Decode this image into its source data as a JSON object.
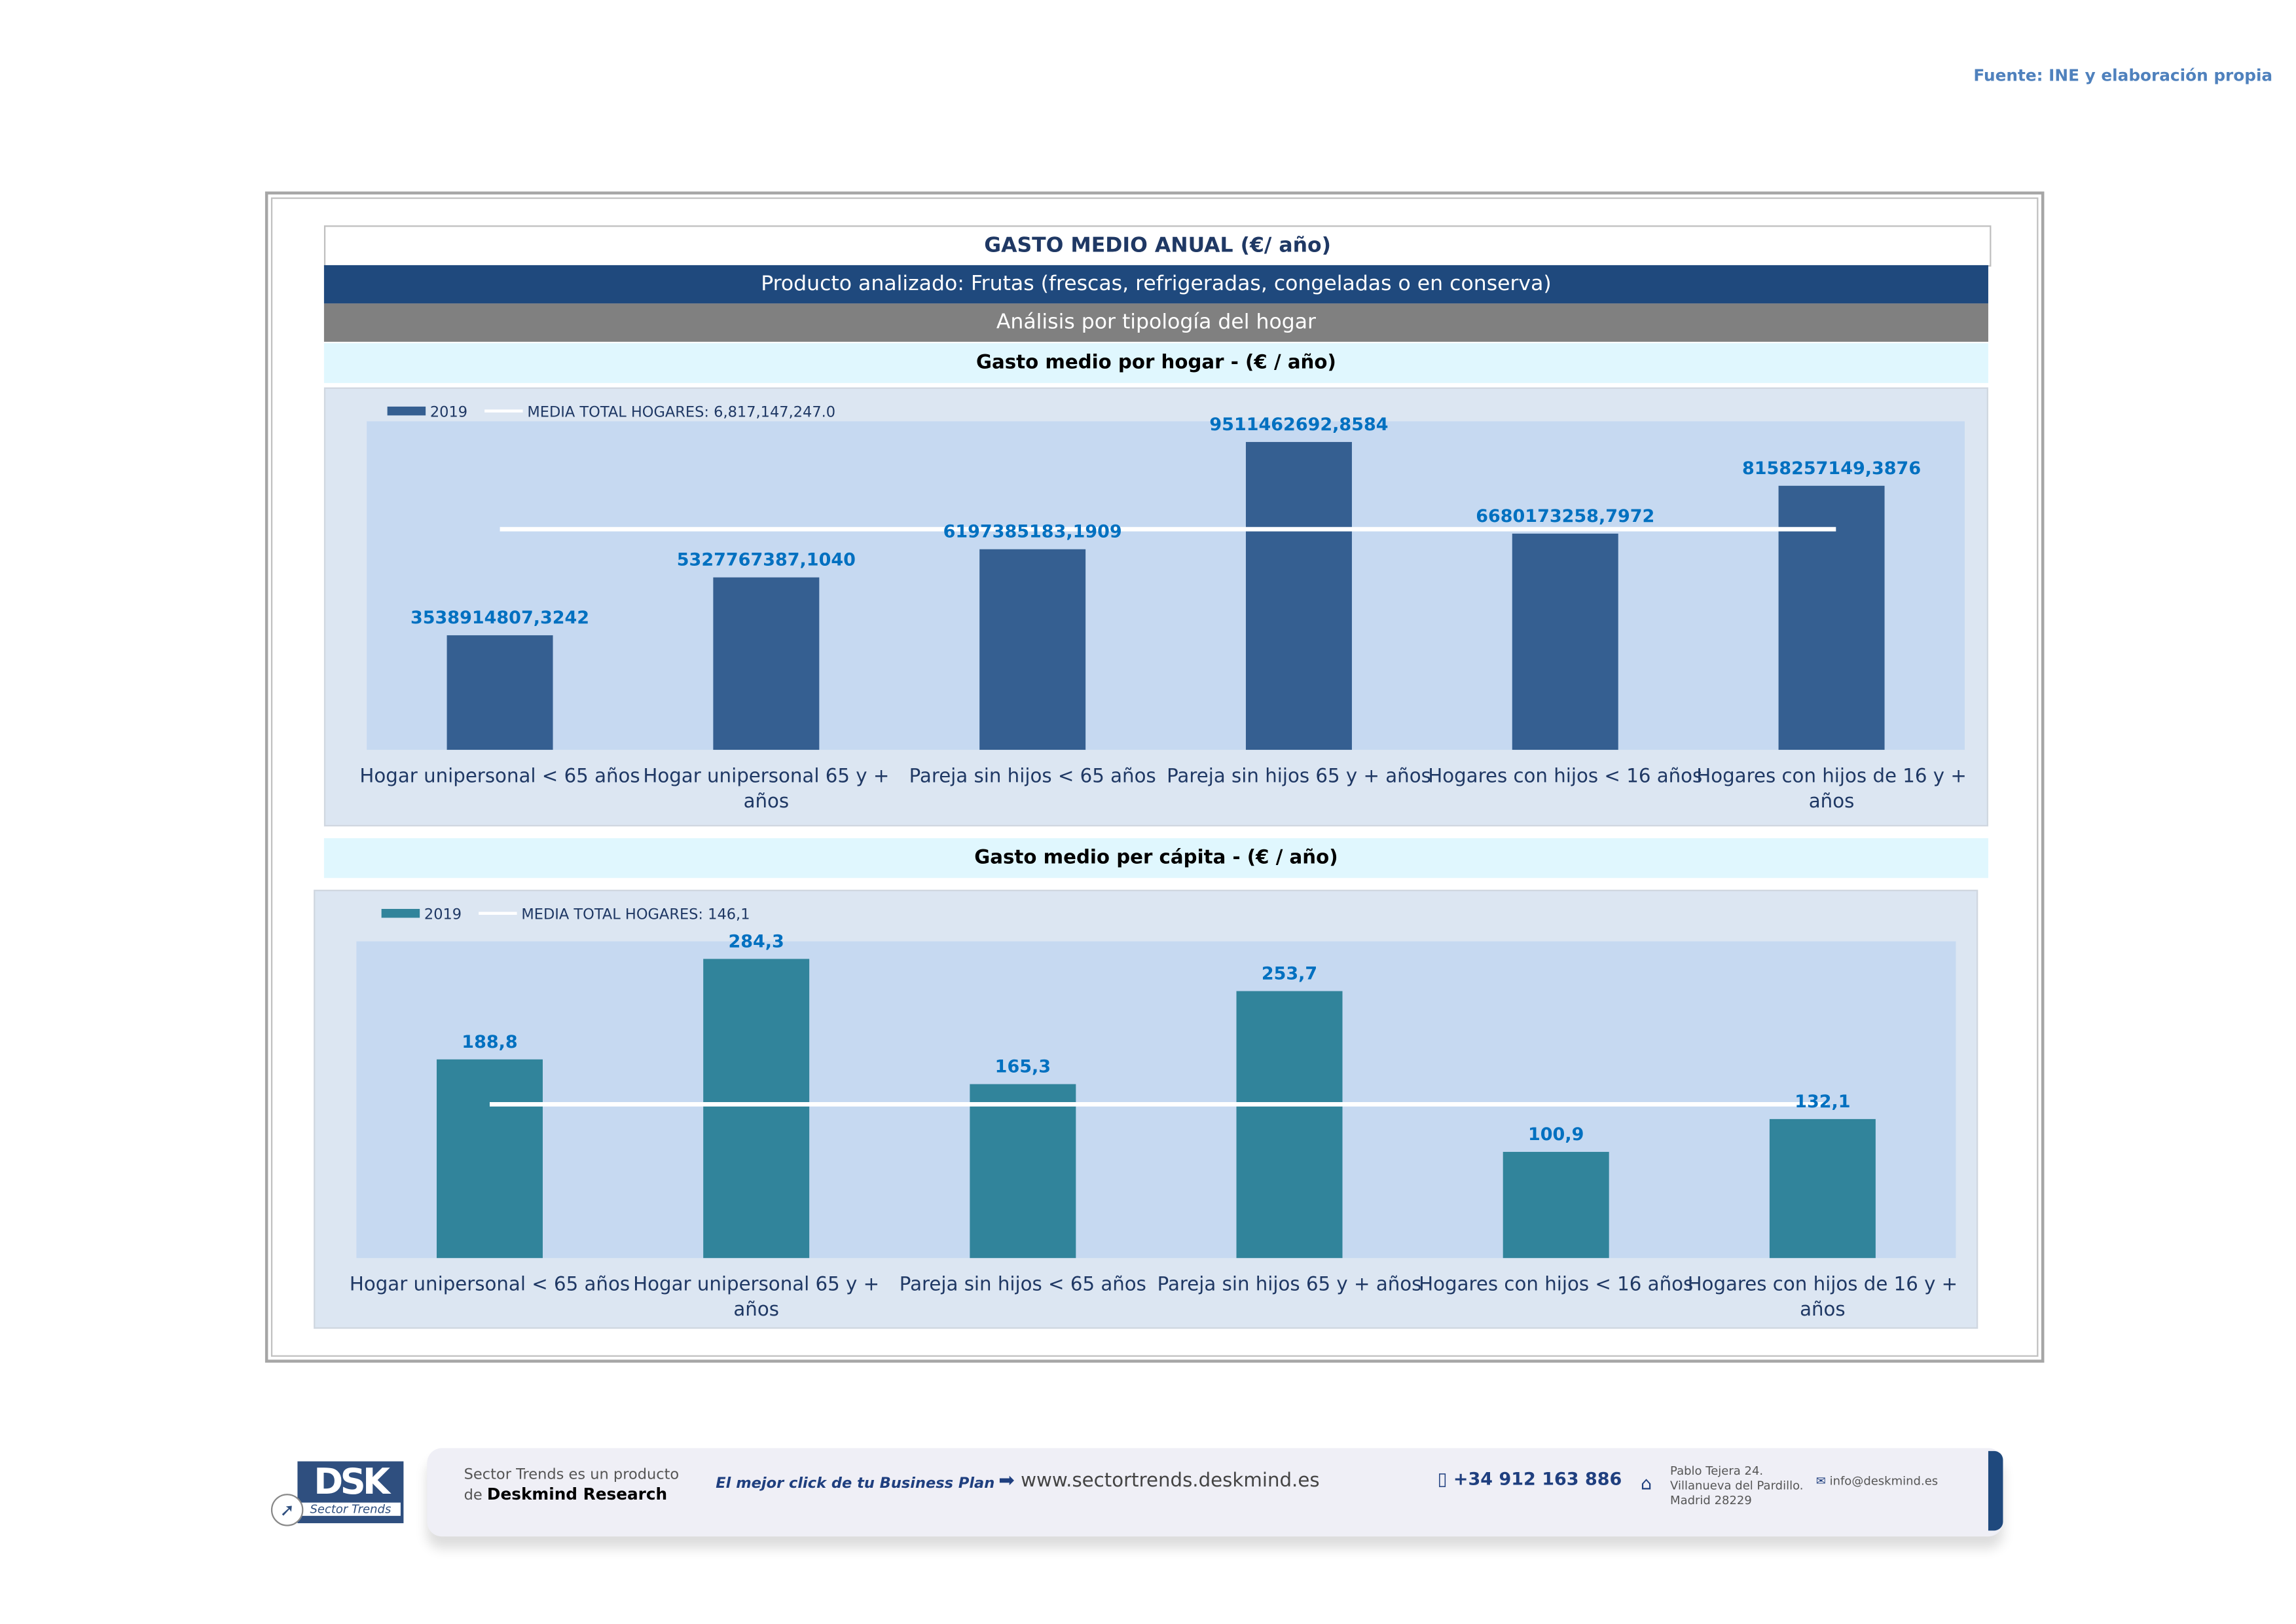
{
  "source": "Fuente: INE y elaboración propia",
  "header": {
    "title": "GASTO MEDIO ANUAL (€/ año)",
    "product": "Producto analizado: Frutas (frescas, refrigeradas, congeladas o en conserva)",
    "analysis": "Análisis por tipología del hogar"
  },
  "chart_data": [
    {
      "type": "bar",
      "title": "Gasto medio por hogar -  (€ / año)",
      "categories": [
        "Hogar unipersonal < 65 años",
        "Hogar unipersonal  65 y + años",
        "Pareja sin hijos < 65 años",
        "Pareja sin hijos 65 y + años",
        "Hogares con hijos < 16 años",
        "Hogares con hijos de 16 y + años"
      ],
      "series": [
        {
          "name": "2019",
          "color": "#355f91",
          "values": [
            3538914807.3242,
            5327767387.104,
            6197385183.1909,
            9511462692.8584,
            6680173258.7972,
            8158257149.3876
          ],
          "labels": [
            "3538914807,3242",
            "5327767387,1040",
            "6197385183,1909",
            "9511462692,8584",
            "6680173258,7972",
            "8158257149,3876"
          ]
        }
      ],
      "reference_line": {
        "name": "MEDIA TOTAL  HOGARES:",
        "value": 6817147247.0,
        "label": "6,817,147,247.0",
        "color": "#ffffff"
      },
      "ylim": [
        0,
        10150000000
      ],
      "grid": false,
      "legend": "top-left"
    },
    {
      "type": "bar",
      "title": "Gasto medio per cápita -  (€ / año)",
      "categories": [
        "Hogar unipersonal < 65 años",
        "Hogar unipersonal  65 y + años",
        "Pareja sin hijos < 65 años",
        "Pareja sin hijos 65 y + años",
        "Hogares con hijos < 16 años",
        "Hogares con hijos de 16 y + años"
      ],
      "series": [
        {
          "name": "2019",
          "color": "#31849b",
          "values": [
            188.8,
            284.3,
            165.3,
            253.7,
            100.9,
            132.1
          ],
          "labels": [
            "188,8",
            "284,3",
            "165,3",
            "253,7",
            "100,9",
            "132,1"
          ]
        }
      ],
      "reference_line": {
        "name": "MEDIA TOTAL  HOGARES:",
        "value": 146.1,
        "label": "146,1",
        "color": "#ffffff"
      },
      "ylim": [
        0,
        301
      ],
      "grid": false,
      "legend": "top-left"
    }
  ],
  "footer": {
    "logo_text": "DSK",
    "logo_sub": "Sector Trends",
    "product_line1": "Sector Trends es un producto",
    "product_line2_prefix": "de ",
    "product_line2_brand": "Deskmind Research",
    "slogan": "El mejor click de tu Business Plan",
    "website": "www.sectortrends.deskmind.es",
    "phone": "+34 912 163 886",
    "address": [
      "Pablo Tejera 24.",
      "Villanueva del Pardillo.",
      "Madrid 28229"
    ],
    "email": "info@deskmind.es"
  }
}
